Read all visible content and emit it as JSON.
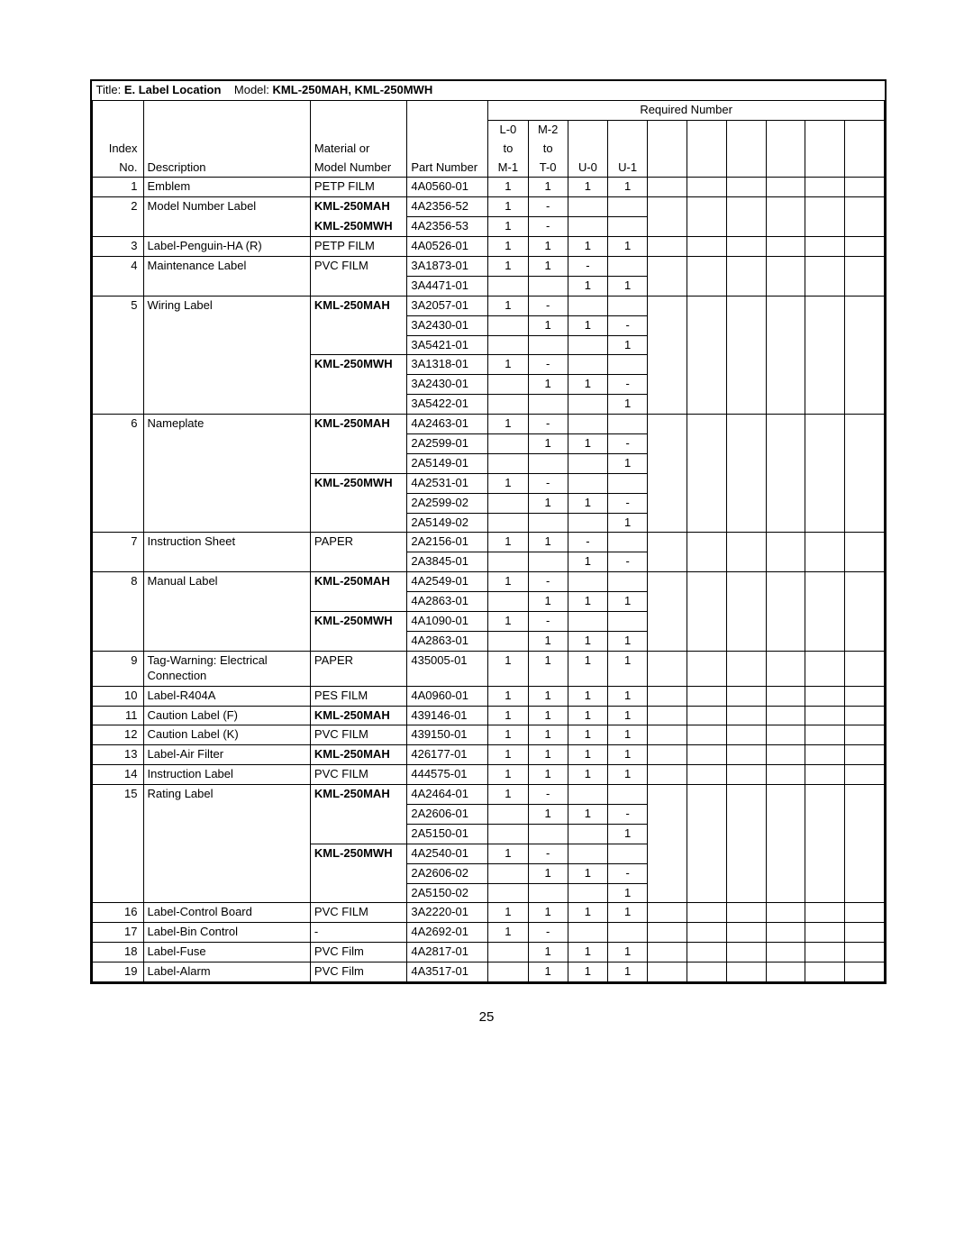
{
  "title_prefix": "Title: ",
  "title_name": "E. Label Location",
  "model_prefix": "Model: ",
  "model_name": "KML-250MAH, KML-250MWH",
  "required_number_label": "Required Number",
  "headers": {
    "index1": "Index",
    "index2": "No.",
    "desc": "Description",
    "mat1": "Material or",
    "mat2": "Model Number",
    "part": "Part Number",
    "col1a": "L-0",
    "col1b": "to",
    "col1c": "M-1",
    "col2a": "M-2",
    "col2b": "to",
    "col2c": "T-0",
    "col3": "U-0",
    "col4": "U-1"
  },
  "rows": [
    {
      "idx": "1",
      "desc": "Emblem",
      "mat": "PETP FILM",
      "mat_bold": false,
      "part": "4A0560-01",
      "n": [
        "1",
        "1",
        "1",
        "1"
      ],
      "top": true,
      "bot": true
    },
    {
      "idx": "2",
      "desc": "Model Number Label",
      "mat": "KML-250MAH",
      "mat_bold": true,
      "part": "4A2356-52",
      "n": [
        "1",
        "-",
        "",
        ""
      ],
      "top": true,
      "bot": false
    },
    {
      "idx": "",
      "desc": "",
      "mat": "KML-250MWH",
      "mat_bold": true,
      "part": "4A2356-53",
      "n": [
        "1",
        "-",
        "",
        ""
      ],
      "top": false,
      "bot": true
    },
    {
      "idx": "3",
      "desc": "Label-Penguin-HA (R)",
      "mat": "PETP FILM",
      "mat_bold": false,
      "part": "4A0526-01",
      "n": [
        "1",
        "1",
        "1",
        "1"
      ],
      "top": true,
      "bot": true
    },
    {
      "idx": "4",
      "desc": "Maintenance Label",
      "mat": "PVC FILM",
      "mat_bold": false,
      "part": "3A1873-01",
      "n": [
        "1",
        "1",
        "-",
        ""
      ],
      "top": true,
      "bot": false
    },
    {
      "idx": "",
      "desc": "",
      "mat": "",
      "mat_bold": false,
      "part": "3A4471-01",
      "n": [
        "",
        "",
        "1",
        "1"
      ],
      "top": false,
      "bot": true
    },
    {
      "idx": "5",
      "desc": "Wiring Label",
      "mat": "KML-250MAH",
      "mat_bold": true,
      "part": "3A2057-01",
      "n": [
        "1",
        "-",
        "",
        ""
      ],
      "top": true,
      "bot": false
    },
    {
      "idx": "",
      "desc": "",
      "mat": "",
      "mat_bold": false,
      "part": "3A2430-01",
      "n": [
        "",
        "1",
        "1",
        "-"
      ],
      "top": false,
      "bot": false
    },
    {
      "idx": "",
      "desc": "",
      "mat": "",
      "mat_bold": false,
      "part": "3A5421-01",
      "n": [
        "",
        "",
        "",
        "1"
      ],
      "top": false,
      "bot": false
    },
    {
      "idx": "",
      "desc": "",
      "mat": "KML-250MWH",
      "mat_bold": true,
      "part": "3A1318-01",
      "n": [
        "1",
        "-",
        "",
        ""
      ],
      "top": false,
      "bot": false,
      "mat_top": true
    },
    {
      "idx": "",
      "desc": "",
      "mat": "",
      "mat_bold": false,
      "part": "3A2430-01",
      "n": [
        "",
        "1",
        "1",
        "-"
      ],
      "top": false,
      "bot": false
    },
    {
      "idx": "",
      "desc": "",
      "mat": "",
      "mat_bold": false,
      "part": "3A5422-01",
      "n": [
        "",
        "",
        "",
        "1"
      ],
      "top": false,
      "bot": true
    },
    {
      "idx": "6",
      "desc": "Nameplate",
      "mat": "KML-250MAH",
      "mat_bold": true,
      "part": "4A2463-01",
      "n": [
        "1",
        "-",
        "",
        ""
      ],
      "top": true,
      "bot": false
    },
    {
      "idx": "",
      "desc": "",
      "mat": "",
      "mat_bold": false,
      "part": "2A2599-01",
      "n": [
        "",
        "1",
        "1",
        "-"
      ],
      "top": false,
      "bot": false
    },
    {
      "idx": "",
      "desc": "",
      "mat": "",
      "mat_bold": false,
      "part": "2A5149-01",
      "n": [
        "",
        "",
        "",
        "1"
      ],
      "top": false,
      "bot": false
    },
    {
      "idx": "",
      "desc": "",
      "mat": "KML-250MWH",
      "mat_bold": true,
      "part": "4A2531-01",
      "n": [
        "1",
        "-",
        "",
        ""
      ],
      "top": false,
      "bot": false,
      "mat_top": true
    },
    {
      "idx": "",
      "desc": "",
      "mat": "",
      "mat_bold": false,
      "part": "2A2599-02",
      "n": [
        "",
        "1",
        "1",
        "-"
      ],
      "top": false,
      "bot": false
    },
    {
      "idx": "",
      "desc": "",
      "mat": "",
      "mat_bold": false,
      "part": "2A5149-02",
      "n": [
        "",
        "",
        "",
        "1"
      ],
      "top": false,
      "bot": true
    },
    {
      "idx": "7",
      "desc": "Instruction Sheet",
      "mat": "PAPER",
      "mat_bold": false,
      "part": "2A2156-01",
      "n": [
        "1",
        "1",
        "-",
        ""
      ],
      "top": true,
      "bot": false
    },
    {
      "idx": "",
      "desc": "",
      "mat": "",
      "mat_bold": false,
      "part": "2A3845-01",
      "n": [
        "",
        "",
        "1",
        "-"
      ],
      "top": false,
      "bot": true
    },
    {
      "idx": "8",
      "desc": "Manual Label",
      "mat": "KML-250MAH",
      "mat_bold": true,
      "part": "4A2549-01",
      "n": [
        "1",
        "-",
        "",
        ""
      ],
      "top": true,
      "bot": false
    },
    {
      "idx": "",
      "desc": "",
      "mat": "",
      "mat_bold": false,
      "part": "4A2863-01",
      "n": [
        "",
        "1",
        "1",
        "1"
      ],
      "top": false,
      "bot": false
    },
    {
      "idx": "",
      "desc": "",
      "mat": "KML-250MWH",
      "mat_bold": true,
      "part": "4A1090-01",
      "n": [
        "1",
        "-",
        "",
        ""
      ],
      "top": false,
      "bot": false,
      "mat_top": true
    },
    {
      "idx": "",
      "desc": "",
      "mat": "",
      "mat_bold": false,
      "part": "4A2863-01",
      "n": [
        "",
        "1",
        "1",
        "1"
      ],
      "top": false,
      "bot": true
    },
    {
      "idx": "9",
      "desc": "Tag-Warning: Electrical Connection",
      "mat": "PAPER",
      "mat_bold": false,
      "part": "435005-01",
      "n": [
        "1",
        "1",
        "1",
        "1"
      ],
      "top": true,
      "bot": true
    },
    {
      "idx": "10",
      "desc": "Label-R404A",
      "mat": "PES FILM",
      "mat_bold": false,
      "part": "4A0960-01",
      "n": [
        "1",
        "1",
        "1",
        "1"
      ],
      "top": true,
      "bot": true
    },
    {
      "idx": "11",
      "desc": "Caution Label (F)",
      "mat": "KML-250MAH",
      "mat_bold": true,
      "part": "439146-01",
      "n": [
        "1",
        "1",
        "1",
        "1"
      ],
      "top": true,
      "bot": true
    },
    {
      "idx": "12",
      "desc": "Caution Label (K)",
      "mat": "PVC FILM",
      "mat_bold": false,
      "part": "439150-01",
      "n": [
        "1",
        "1",
        "1",
        "1"
      ],
      "top": true,
      "bot": true
    },
    {
      "idx": "13",
      "desc": "Label-Air Filter",
      "mat": "KML-250MAH",
      "mat_bold": true,
      "part": "426177-01",
      "n": [
        "1",
        "1",
        "1",
        "1"
      ],
      "top": true,
      "bot": true
    },
    {
      "idx": "14",
      "desc": "Instruction Label",
      "mat": "PVC FILM",
      "mat_bold": false,
      "part": "444575-01",
      "n": [
        "1",
        "1",
        "1",
        "1"
      ],
      "top": true,
      "bot": true
    },
    {
      "idx": "15",
      "desc": "Rating Label",
      "mat": "KML-250MAH",
      "mat_bold": true,
      "part": "4A2464-01",
      "n": [
        "1",
        "-",
        "",
        ""
      ],
      "top": true,
      "bot": false
    },
    {
      "idx": "",
      "desc": "",
      "mat": "",
      "mat_bold": false,
      "part": "2A2606-01",
      "n": [
        "",
        "1",
        "1",
        "-"
      ],
      "top": false,
      "bot": false
    },
    {
      "idx": "",
      "desc": "",
      "mat": "",
      "mat_bold": false,
      "part": "2A5150-01",
      "n": [
        "",
        "",
        "",
        "1"
      ],
      "top": false,
      "bot": false
    },
    {
      "idx": "",
      "desc": "",
      "mat": "KML-250MWH",
      "mat_bold": true,
      "part": "4A2540-01",
      "n": [
        "1",
        "-",
        "",
        ""
      ],
      "top": false,
      "bot": false,
      "mat_top": true
    },
    {
      "idx": "",
      "desc": "",
      "mat": "",
      "mat_bold": false,
      "part": "2A2606-02",
      "n": [
        "",
        "1",
        "1",
        "-"
      ],
      "top": false,
      "bot": false
    },
    {
      "idx": "",
      "desc": "",
      "mat": "",
      "mat_bold": false,
      "part": "2A5150-02",
      "n": [
        "",
        "",
        "",
        "1"
      ],
      "top": false,
      "bot": true
    },
    {
      "idx": "16",
      "desc": "Label-Control Board",
      "mat": "PVC FILM",
      "mat_bold": false,
      "part": "3A2220-01",
      "n": [
        "1",
        "1",
        "1",
        "1"
      ],
      "top": true,
      "bot": true
    },
    {
      "idx": "17",
      "desc": "Label-Bin Control",
      "mat": "-",
      "mat_bold": false,
      "part": "4A2692-01",
      "n": [
        "1",
        "-",
        "",
        ""
      ],
      "top": true,
      "bot": true
    },
    {
      "idx": "18",
      "desc": "Label-Fuse",
      "mat": "PVC Film",
      "mat_bold": false,
      "part": "4A2817-01",
      "n": [
        "",
        "1",
        "1",
        "1"
      ],
      "top": true,
      "bot": true
    },
    {
      "idx": "19",
      "desc": "Label-Alarm",
      "mat": "PVC Film",
      "mat_bold": false,
      "part": "4A3517-01",
      "n": [
        "",
        "1",
        "1",
        "1"
      ],
      "top": true,
      "bot": true
    }
  ],
  "page_number": "25"
}
